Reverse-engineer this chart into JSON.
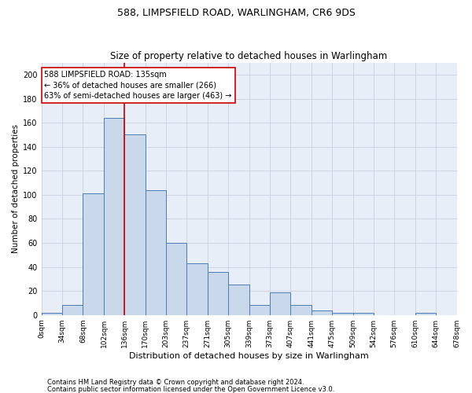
{
  "title1": "588, LIMPSFIELD ROAD, WARLINGHAM, CR6 9DS",
  "title2": "Size of property relative to detached houses in Warlingham",
  "xlabel": "Distribution of detached houses by size in Warlingham",
  "ylabel": "Number of detached properties",
  "bar_edges": [
    0,
    34,
    68,
    102,
    136,
    170,
    203,
    237,
    271,
    305,
    339,
    373,
    407,
    441,
    475,
    509,
    542,
    576,
    610,
    644,
    678
  ],
  "bar_heights": [
    2,
    8,
    101,
    164,
    150,
    104,
    60,
    43,
    36,
    25,
    8,
    19,
    8,
    4,
    2,
    2,
    0,
    0,
    2,
    0
  ],
  "tick_labels": [
    "0sqm",
    "34sqm",
    "68sqm",
    "102sqm",
    "136sqm",
    "170sqm",
    "203sqm",
    "237sqm",
    "271sqm",
    "305sqm",
    "339sqm",
    "373sqm",
    "407sqm",
    "441sqm",
    "475sqm",
    "509sqm",
    "542sqm",
    "576sqm",
    "610sqm",
    "644sqm",
    "678sqm"
  ],
  "bar_color": "#c9d9eb",
  "bar_edgecolor": "#4a7db5",
  "red_line_x": 135,
  "ylim": [
    0,
    210
  ],
  "yticks": [
    0,
    20,
    40,
    60,
    80,
    100,
    120,
    140,
    160,
    180,
    200
  ],
  "annotation_text": "588 LIMPSFIELD ROAD: 135sqm\n← 36% of detached houses are smaller (266)\n63% of semi-detached houses are larger (463) →",
  "annotation_box_color": "#ffffff",
  "annotation_box_edgecolor": "#cc0000",
  "grid_color": "#c8cfe0",
  "footnote1": "Contains HM Land Registry data © Crown copyright and database right 2024.",
  "footnote2": "Contains public sector information licensed under the Open Government Licence v3.0.",
  "background_color": "#e8eef8",
  "title1_fontsize": 9,
  "title2_fontsize": 8.5,
  "xlabel_fontsize": 8,
  "ylabel_fontsize": 7.5,
  "tick_fontsize": 6.5,
  "ytick_fontsize": 7,
  "annot_fontsize": 7,
  "footnote_fontsize": 6
}
